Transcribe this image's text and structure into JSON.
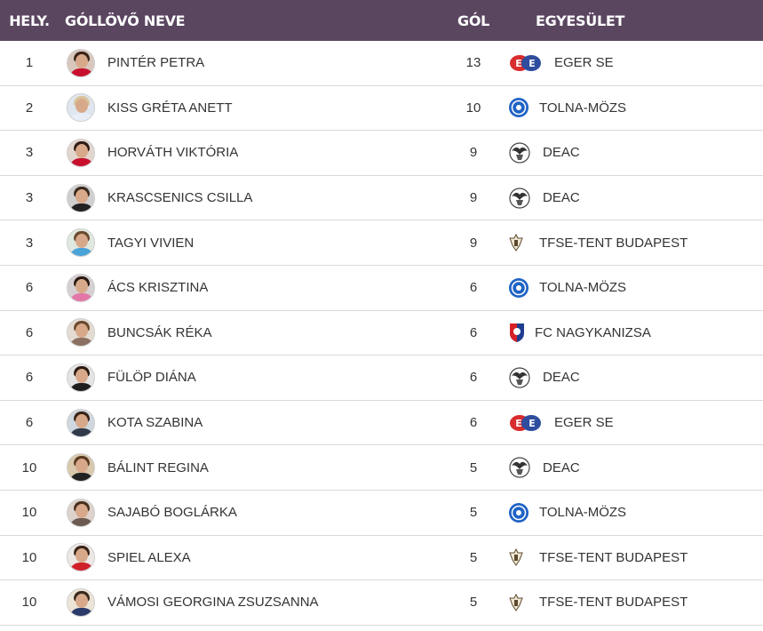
{
  "header": {
    "rank": "HELY.",
    "name": "GÓLLÖVŐ NEVE",
    "goals": "GÓL",
    "club": "EGYESÜLET"
  },
  "colors": {
    "header_bg": "#5b4660",
    "header_text": "#ffffff",
    "row_border": "#d9d9d9"
  },
  "rows": [
    {
      "rank": "1",
      "name": "PINTÉR PETRA",
      "goals": "13",
      "club": "EGER SE",
      "logo": "eger-se-logo"
    },
    {
      "rank": "2",
      "name": "KISS GRÉTA ANETT",
      "goals": "10",
      "club": "TOLNA-MÖZS",
      "logo": "tolna-mozs-logo"
    },
    {
      "rank": "3",
      "name": "HORVÁTH VIKTÓRIA",
      "goals": "9",
      "club": "DEAC",
      "logo": "deac-logo"
    },
    {
      "rank": "3",
      "name": "KRASCSENICS CSILLA",
      "goals": "9",
      "club": "DEAC",
      "logo": "deac-logo"
    },
    {
      "rank": "3",
      "name": "TAGYI VIVIEN",
      "goals": "9",
      "club": "TFSE-TENT BUDAPEST",
      "logo": "tfse-logo"
    },
    {
      "rank": "6",
      "name": "ÁCS KRISZTINA",
      "goals": "6",
      "club": "TOLNA-MÖZS",
      "logo": "tolna-mozs-logo"
    },
    {
      "rank": "6",
      "name": "BUNCSÁK RÉKA",
      "goals": "6",
      "club": "FC NAGYKANIZSA",
      "logo": "fc-nagykanizsa-logo"
    },
    {
      "rank": "6",
      "name": "FÜLÖP DIÁNA",
      "goals": "6",
      "club": "DEAC",
      "logo": "deac-logo"
    },
    {
      "rank": "6",
      "name": "KOTA SZABINA",
      "goals": "6",
      "club": "EGER SE",
      "logo": "eger-se-logo"
    },
    {
      "rank": "10",
      "name": "BÁLINT REGINA",
      "goals": "5",
      "club": "DEAC",
      "logo": "deac-logo"
    },
    {
      "rank": "10",
      "name": "SAJABÓ BOGLÁRKA",
      "goals": "5",
      "club": "TOLNA-MÖZS",
      "logo": "tolna-mozs-logo"
    },
    {
      "rank": "10",
      "name": "SPIEL ALEXA",
      "goals": "5",
      "club": "TFSE-TENT BUDAPEST",
      "logo": "tfse-logo"
    },
    {
      "rank": "10",
      "name": "VÁMOSI GEORGINA ZSUZSANNA",
      "goals": "5",
      "club": "TFSE-TENT BUDAPEST",
      "logo": "tfse-logo"
    }
  ],
  "avatar_styles": [
    {
      "hair": "#3a2418",
      "shirt": "#c8102e",
      "bg": "#d9c7bd"
    },
    {
      "hair": "#d8c39a",
      "shirt": "#e8eef7",
      "bg": "#dfe6ef"
    },
    {
      "hair": "#2e1d14",
      "shirt": "#c8102e",
      "bg": "#e3d6cf"
    },
    {
      "hair": "#3b2a1e",
      "shirt": "#222222",
      "bg": "#cfcfcf"
    },
    {
      "hair": "#6b4a2f",
      "shirt": "#4aa3d8",
      "bg": "#dfe9df"
    },
    {
      "hair": "#2a1a12",
      "shirt": "#e377a8",
      "bg": "#d7d0d3"
    },
    {
      "hair": "#6b4a2f",
      "shirt": "#8a7060",
      "bg": "#e4dbd2"
    },
    {
      "hair": "#2b1b12",
      "shirt": "#1e1e1e",
      "bg": "#e4e4e4"
    },
    {
      "hair": "#3a2418",
      "shirt": "#303a4a",
      "bg": "#cfd8df"
    },
    {
      "hair": "#5a3b22",
      "shirt": "#222222",
      "bg": "#d9c8ad"
    },
    {
      "hair": "#4a3020",
      "shirt": "#6b5a50",
      "bg": "#ddd3cc"
    },
    {
      "hair": "#3a2418",
      "shirt": "#d0202a",
      "bg": "#ece8e6"
    },
    {
      "hair": "#3a2a1e",
      "shirt": "#2a3a6a",
      "bg": "#ece4d6"
    }
  ]
}
